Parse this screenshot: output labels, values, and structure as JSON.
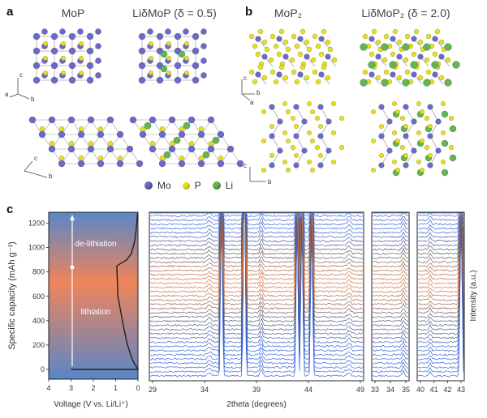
{
  "panel_a": {
    "label": "a",
    "titles": [
      "MoP",
      "LiδMoP (δ = 0.5)"
    ],
    "axes_top": [
      "c",
      "a",
      "b"
    ],
    "axes_bottom": [
      "c",
      "b"
    ]
  },
  "panel_b": {
    "label": "b",
    "titles": [
      "MoP₂",
      "LiδMoP₂ (δ = 2.0)"
    ],
    "axes_top": [
      "c",
      "b",
      "a"
    ],
    "axes_bottom": [
      "c",
      "b"
    ]
  },
  "legend": {
    "items": [
      {
        "label": "Mo",
        "color": "#6a6ac8"
      },
      {
        "label": "P",
        "color": "#e8df1e"
      },
      {
        "label": "Li",
        "color": "#62b553"
      }
    ]
  },
  "panel_c": {
    "label": "c",
    "ylabel": "Specific capacity (mAh g⁻¹)",
    "xlabel_left": "Voltage (V vs. Li/Li⁺)",
    "xlabel_mid": "2theta (degrees)",
    "ylabel_right": "Intensity (a.u.)",
    "ann_top": "de-lithiation",
    "ann_bottom": "lithiation",
    "yticks": [
      "0",
      "200",
      "400",
      "600",
      "800",
      "1000",
      "1200"
    ],
    "xticks_left": [
      "4",
      "3",
      "2",
      "1",
      "0"
    ],
    "xticks_mid": [
      "29",
      "34",
      "39",
      "44",
      "49"
    ],
    "xticks_r1": [
      "33",
      "34",
      "35"
    ],
    "xticks_r2": [
      "40",
      "41",
      "42",
      "43"
    ]
  },
  "chart_data": {
    "type": "line",
    "xlabel": "Voltage (V vs. Li/Li⁺)",
    "ylabel": "Specific capacity (mAh g⁻¹)",
    "xlim": [
      4,
      0
    ],
    "ylim": [
      -80,
      1290
    ],
    "x": [
      0.0,
      0.05,
      0.1,
      0.2,
      0.3,
      0.5,
      0.7,
      0.9,
      0.95,
      0.5,
      0.3,
      0.15,
      0.08,
      0.04,
      0.02
    ],
    "y": [
      0,
      15,
      30,
      60,
      100,
      220,
      400,
      600,
      850,
      900,
      950,
      1050,
      1150,
      1240,
      1280
    ]
  }
}
